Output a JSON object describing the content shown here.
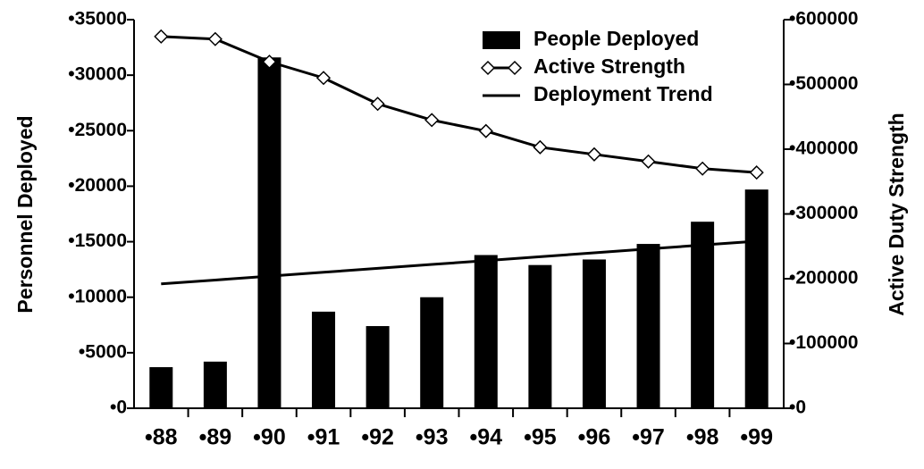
{
  "chart_data": {
    "type": "combo",
    "y_label": "Personnel Deployed",
    "y2_label": "Active Duty Strength",
    "categories": [
      "•88",
      "•89",
      "•90",
      "•91",
      "•92",
      "•93",
      "•94",
      "•95",
      "•96",
      "•97",
      "•98",
      "•99"
    ],
    "series": [
      {
        "name": "People Deployed",
        "type": "bar",
        "color": "#000000",
        "values": [
          3700,
          4200,
          31600,
          8700,
          7400,
          10000,
          13800,
          12900,
          13400,
          14800,
          16800,
          19700
        ]
      },
      {
        "name": "Active Strength",
        "type": "line",
        "marker": "diamond",
        "axis": "y2",
        "color": "#000000",
        "values": [
          574000,
          570000,
          535000,
          510000,
          470000,
          445000,
          428000,
          403000,
          392000,
          381000,
          370000,
          364000
        ]
      },
      {
        "name": "Deployment Trend",
        "type": "line",
        "color": "#000000",
        "values": [
          11200,
          11550,
          11900,
          12250,
          12600,
          12950,
          13300,
          13650,
          14000,
          14350,
          14700,
          15050
        ]
      }
    ],
    "ylim": [
      0,
      35000
    ],
    "yticks": [
      {
        "value": 0,
        "label": "•0"
      },
      {
        "value": 5000,
        "label": "•5000"
      },
      {
        "value": 10000,
        "label": "•10000"
      },
      {
        "value": 15000,
        "label": "•15000"
      },
      {
        "value": 20000,
        "label": "•20000"
      },
      {
        "value": 25000,
        "label": "•25000"
      },
      {
        "value": 30000,
        "label": "•30000"
      },
      {
        "value": 35000,
        "label": "•35000"
      }
    ],
    "y2lim": [
      0,
      600000
    ],
    "y2ticks": [
      {
        "value": 0,
        "label": "•0"
      },
      {
        "value": 100000,
        "label": "•100000"
      },
      {
        "value": 200000,
        "label": "•200000"
      },
      {
        "value": 300000,
        "label": "•300000"
      },
      {
        "value": 400000,
        "label": "•400000"
      },
      {
        "value": 500000,
        "label": "•500000"
      },
      {
        "value": 600000,
        "label": "•600000"
      }
    ],
    "legend": "top-right"
  }
}
